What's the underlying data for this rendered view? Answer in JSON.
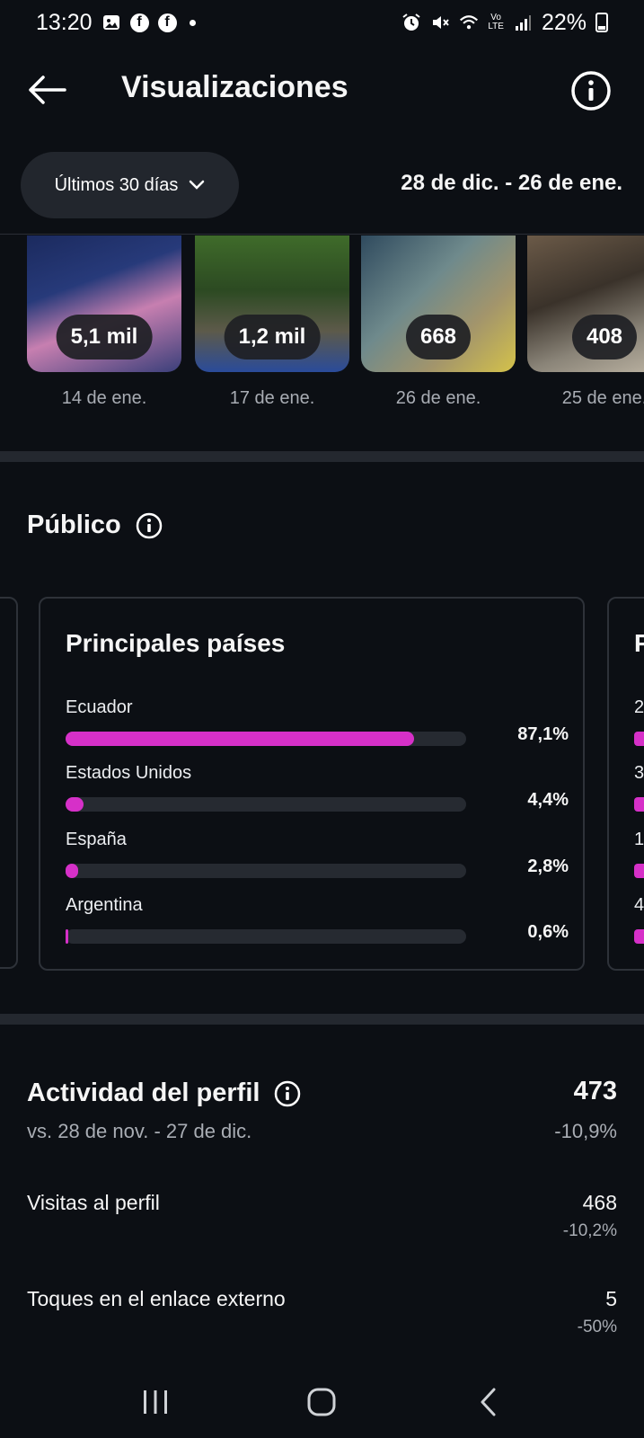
{
  "status_bar": {
    "time": "13:20",
    "battery": "22%",
    "icons": [
      "image-icon",
      "facebook-icon",
      "facebook-icon",
      "dot-icon",
      "alarm-icon",
      "mute-icon",
      "wifi-icon",
      "volte-icon",
      "signal-icon",
      "battery-icon"
    ]
  },
  "header": {
    "title": "Visualizaciones",
    "back_icon": "arrow-left-icon",
    "info_icon": "info-icon"
  },
  "filter": {
    "range_label": "Últimos 30 días",
    "date_range": "28 de dic. - 26 de ene."
  },
  "posts": [
    {
      "views": "5,1 mil",
      "date": "14 de ene."
    },
    {
      "views": "1,2 mil",
      "date": "17 de ene."
    },
    {
      "views": "668",
      "date": "26 de ene."
    },
    {
      "views": "408",
      "date": "25 de ene."
    }
  ],
  "audience": {
    "title": "Público",
    "card_title": "Principales países",
    "countries": [
      {
        "name": "Ecuador",
        "pct_label": "87,1%",
        "pct": 87.1
      },
      {
        "name": "Estados Unidos",
        "pct_label": "4,4%",
        "pct": 4.4
      },
      {
        "name": "España",
        "pct_label": "2,8%",
        "pct": 2.8
      },
      {
        "name": "Argentina",
        "pct_label": "0,6%",
        "pct": 0.6
      }
    ],
    "next_card": {
      "title": "P",
      "rows": [
        "2",
        "3",
        "1",
        "4"
      ]
    }
  },
  "profile_activity": {
    "title": "Actividad del perfil",
    "comparison": "vs. 28 de nov. - 27 de dic.",
    "total": "473",
    "total_change": "-10,9%",
    "metrics": [
      {
        "label": "Visitas al perfil",
        "value": "468",
        "change": "-10,2%"
      },
      {
        "label": "Toques en el enlace externo",
        "value": "5",
        "change": "-50%"
      }
    ]
  },
  "colors": {
    "background": "#0c0f14",
    "bar_fill": "#d630c8",
    "bar_track": "#262a31",
    "pill": "#22262d"
  }
}
